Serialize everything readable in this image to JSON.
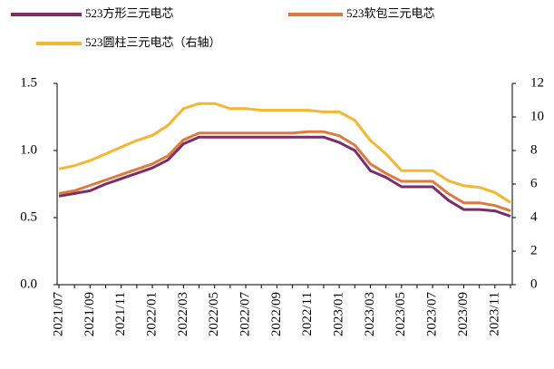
{
  "chart_data": {
    "type": "line",
    "categories": [
      "2021/07",
      null,
      "2021/09",
      null,
      "2021/11",
      null,
      "2022/01",
      null,
      "2022/03",
      null,
      "2022/05",
      null,
      "2022/07",
      null,
      "2022/09",
      null,
      "2022/11",
      null,
      "2023/01",
      null,
      "2023/03",
      null,
      "2023/05",
      null,
      "2023/07",
      null,
      "2023/09",
      null,
      "2023/11",
      null
    ],
    "series": [
      {
        "name": "523方形三元电芯",
        "color": "#7b2d6b",
        "values": [
          0.66,
          0.68,
          0.7,
          0.75,
          0.79,
          0.83,
          0.87,
          0.93,
          1.05,
          1.1,
          1.1,
          1.1,
          1.1,
          1.1,
          1.1,
          1.1,
          1.1,
          1.1,
          1.06,
          1.0,
          0.85,
          0.8,
          0.73,
          0.73,
          0.73,
          0.63,
          0.56,
          0.56,
          0.55,
          0.51
        ]
      },
      {
        "name": "523软包三元电芯",
        "color": "#e07a3c",
        "values": [
          0.68,
          0.7,
          0.74,
          0.78,
          0.82,
          0.86,
          0.9,
          0.96,
          1.08,
          1.13,
          1.13,
          1.13,
          1.13,
          1.13,
          1.13,
          1.13,
          1.14,
          1.14,
          1.11,
          1.04,
          0.9,
          0.83,
          0.77,
          0.77,
          0.77,
          0.68,
          0.61,
          0.61,
          0.59,
          0.55
        ]
      },
      {
        "name": "523圆柱三元电芯（右轴）",
        "color": "#f5b731",
        "axis": "y2",
        "values": [
          6.9,
          7.1,
          7.4,
          7.8,
          8.2,
          8.6,
          8.9,
          9.5,
          10.5,
          10.8,
          10.8,
          10.5,
          10.5,
          10.4,
          10.4,
          10.4,
          10.4,
          10.3,
          10.3,
          9.8,
          8.6,
          7.8,
          6.8,
          6.8,
          6.8,
          6.2,
          5.9,
          5.8,
          5.5,
          4.9
        ]
      }
    ],
    "ylim": [
      0,
      1.5
    ],
    "yticks": [
      {
        "value": 0,
        "label": "0.0"
      },
      0.5,
      {
        "value": 1,
        "label": "1.0"
      },
      1.5
    ],
    "y2lim": [
      0,
      12
    ],
    "y2ticks": [
      0,
      2,
      4,
      6,
      8,
      10,
      12
    ],
    "grid": false
  }
}
